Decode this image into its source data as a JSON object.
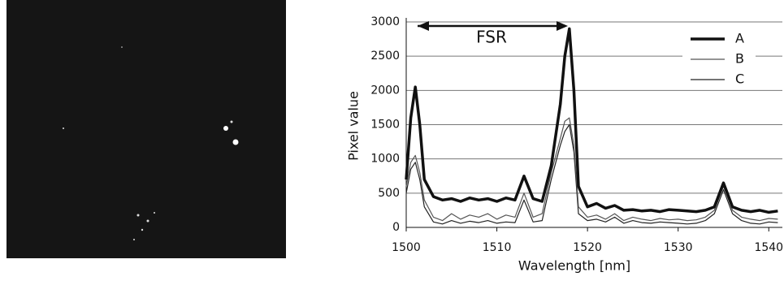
{
  "chart_data": {
    "type": "line",
    "x_label": "Wavelength [nm]",
    "y_label": "Pixel value",
    "annotation": "FSR",
    "x": [
      1500,
      1500.5,
      1501,
      1501.5,
      1502,
      1503,
      1504,
      1505,
      1506,
      1507,
      1508,
      1509,
      1510,
      1511,
      1512,
      1513,
      1514,
      1515,
      1516,
      1517,
      1517.5,
      1518,
      1518.5,
      1519,
      1520,
      1521,
      1522,
      1523,
      1524,
      1525,
      1526,
      1527,
      1528,
      1529,
      1530,
      1531,
      1532,
      1533,
      1534,
      1535,
      1536,
      1537,
      1538,
      1539,
      1540,
      1541
    ],
    "series": [
      {
        "name": "A",
        "color": "#111111",
        "line_width": 3.5,
        "values": [
          700,
          1600,
          2050,
          1500,
          700,
          450,
          400,
          420,
          380,
          430,
          400,
          420,
          380,
          430,
          400,
          750,
          420,
          380,
          900,
          1800,
          2500,
          2900,
          2000,
          600,
          300,
          350,
          280,
          320,
          250,
          260,
          240,
          250,
          230,
          260,
          250,
          240,
          230,
          250,
          300,
          650,
          300,
          250,
          230,
          250,
          220,
          240
        ]
      },
      {
        "name": "B",
        "color": "#555555",
        "line_width": 1.2,
        "values": [
          600,
          950,
          1050,
          800,
          400,
          150,
          100,
          200,
          120,
          180,
          150,
          200,
          120,
          180,
          150,
          500,
          150,
          200,
          800,
          1300,
          1550,
          1600,
          1200,
          300,
          150,
          180,
          120,
          200,
          100,
          150,
          120,
          100,
          130,
          110,
          120,
          100,
          110,
          150,
          250,
          600,
          250,
          150,
          120,
          100,
          130,
          120
        ]
      },
      {
        "name": "C",
        "color": "#222222",
        "line_width": 1.2,
        "values": [
          500,
          850,
          950,
          700,
          300,
          80,
          50,
          100,
          60,
          90,
          70,
          100,
          60,
          80,
          70,
          400,
          80,
          100,
          700,
          1200,
          1400,
          1500,
          1100,
          200,
          100,
          120,
          80,
          150,
          60,
          100,
          70,
          60,
          80,
          70,
          60,
          50,
          60,
          100,
          200,
          550,
          200,
          100,
          60,
          50,
          80,
          70
        ]
      }
    ],
    "xlim": [
      1500,
      1541.5
    ],
    "xticks": [
      1500,
      1510,
      1520,
      1530,
      1540
    ],
    "ylim": [
      0,
      3000
    ],
    "yticks": [
      0,
      500,
      1000,
      1500,
      2000,
      2500,
      3000
    ],
    "grid": true,
    "legend": "upper right"
  }
}
